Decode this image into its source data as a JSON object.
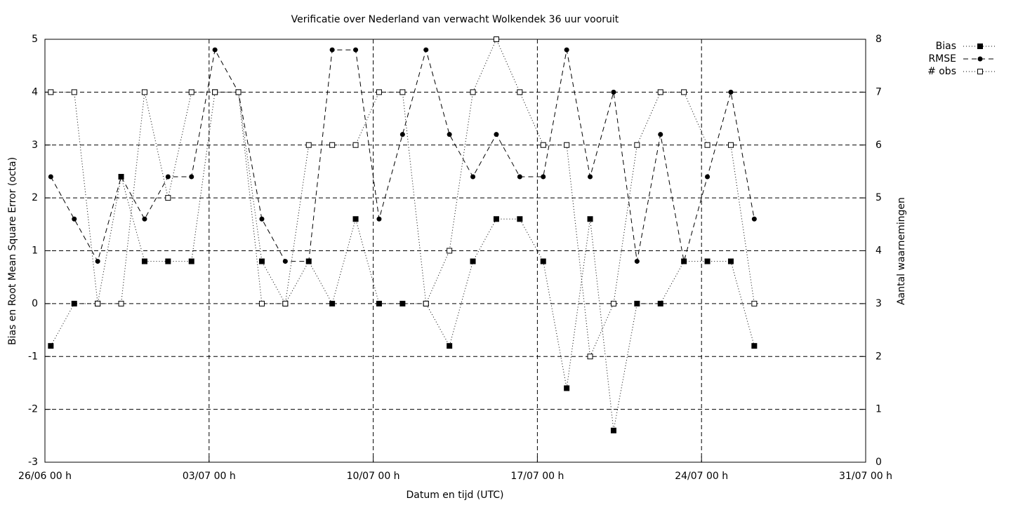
{
  "chart_data": {
    "type": "line",
    "title": "Verificatie over Nederland van verwacht Wolkendek 36 uur vooruit",
    "xlabel": "Datum en tijd (UTC)",
    "ylabel": "Bias en Root Mean Square Error (octa)",
    "y2label": "Aantal waarnemingen",
    "x": [
      0.25,
      1.25,
      2.25,
      3.25,
      4.25,
      5.25,
      6.25,
      7.25,
      8.25,
      9.25,
      10.25,
      11.25,
      12.25,
      13.25,
      14.25,
      15.25,
      16.25,
      17.25,
      18.25,
      19.25,
      20.25,
      21.25,
      22.25,
      23.25,
      24.25,
      25.25,
      26.25,
      27.25,
      28.25,
      29.25,
      30.25
    ],
    "series": [
      {
        "name": "Bias",
        "color": "#000000",
        "dash": "dotted",
        "marker": "filled-square",
        "values": [
          -0.8,
          0,
          0,
          2.4,
          0.8,
          0.8,
          0.8,
          4,
          4,
          0.8,
          0,
          0.8,
          0,
          1.6,
          0,
          0,
          0,
          -0.8,
          0.8,
          1.6,
          1.6,
          0.8,
          -1.6,
          1.6,
          -2.4,
          0,
          0,
          0.8,
          0.8,
          0.8,
          -0.8
        ]
      },
      {
        "name": "RMSE",
        "color": "#000000",
        "dash": "dashed",
        "marker": "filled-circle",
        "values": [
          2.4,
          1.6,
          0.8,
          2.4,
          1.6,
          2.4,
          2.4,
          4.8,
          4,
          1.6,
          0.8,
          0.8,
          4.8,
          4.8,
          1.6,
          3.2,
          4.8,
          3.2,
          2.4,
          3.2,
          2.4,
          2.4,
          4.8,
          2.4,
          4,
          0.8,
          3.2,
          0.8,
          2.4,
          4,
          1.6
        ]
      },
      {
        "name": "# obs",
        "color": "#000000",
        "dash": "dotted",
        "marker": "open-square",
        "axis": "y2",
        "values": [
          7,
          7,
          3,
          3,
          7,
          5,
          7,
          7,
          7,
          3,
          3,
          6,
          6,
          6,
          7,
          7,
          3,
          4,
          7,
          8,
          7,
          6,
          6,
          2,
          3,
          6,
          7,
          7,
          6,
          6,
          3
        ]
      }
    ],
    "xlim": [
      0,
      35
    ],
    "xticks": [
      {
        "value": 0,
        "label": "26/06 00 h"
      },
      {
        "value": 7,
        "label": "03/07 00 h"
      },
      {
        "value": 14,
        "label": "10/07 00 h"
      },
      {
        "value": 21,
        "label": "17/07 00 h"
      },
      {
        "value": 28,
        "label": "24/07 00 h"
      },
      {
        "value": 35,
        "label": "31/07 00 h"
      }
    ],
    "ylim": [
      -3,
      5
    ],
    "yticks": [
      -3,
      -2,
      -1,
      0,
      1,
      2,
      3,
      4,
      5
    ],
    "y2lim": [
      0,
      8
    ],
    "y2ticks": [
      0,
      1,
      2,
      3,
      4,
      5,
      6,
      7,
      8
    ],
    "grid": true,
    "legend": "outside-top-right"
  }
}
